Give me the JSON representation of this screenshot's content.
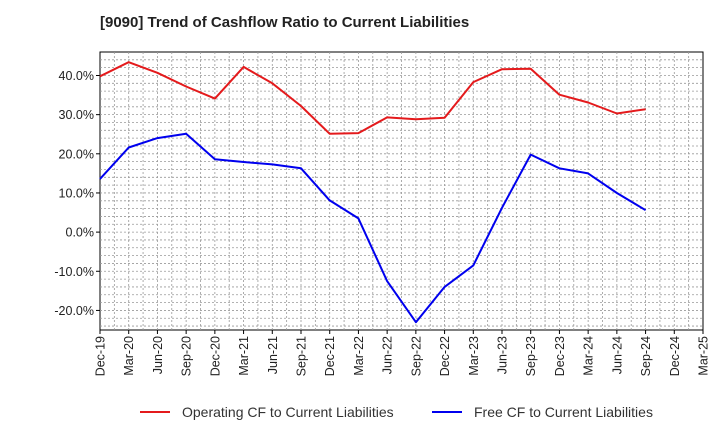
{
  "title": "[9090]  Trend of Cashflow Ratio to Current Liabilities",
  "chart_data": {
    "type": "line",
    "title": "[9090]  Trend of Cashflow Ratio to Current Liabilities",
    "categories": [
      "Dec-19",
      "Mar-20",
      "Jun-20",
      "Sep-20",
      "Dec-20",
      "Mar-21",
      "Jun-21",
      "Sep-21",
      "Dec-21",
      "Mar-22",
      "Jun-22",
      "Sep-22",
      "Dec-22",
      "Mar-23",
      "Jun-23",
      "Sep-23",
      "Dec-23",
      "Mar-24",
      "Jun-24",
      "Sep-24",
      "Dec-24",
      "Mar-25"
    ],
    "y_ticks": [
      "40.0%",
      "30.0%",
      "20.0%",
      "10.0%",
      "0.0%",
      "-10.0%",
      "-20.0%"
    ],
    "ylim": [
      -25,
      46
    ],
    "grid": true,
    "legend_position": "bottom",
    "series": [
      {
        "name": "Operating CF to Current Liabilities",
        "color": "#e41a1c",
        "values": [
          39.8,
          43.4,
          40.7,
          37.2,
          34.1,
          42.2,
          38.0,
          32.2,
          25.1,
          25.3,
          29.3,
          28.8,
          29.2,
          38.3,
          41.6,
          41.7,
          35.1,
          33.1,
          30.3,
          31.4,
          null,
          null
        ]
      },
      {
        "name": "Free CF to Current Liabilities",
        "color": "#0000ee",
        "values": [
          13.6,
          21.6,
          24.0,
          25.1,
          18.6,
          17.9,
          17.3,
          16.3,
          8.1,
          3.5,
          -12.5,
          -23.0,
          -14.0,
          -8.5,
          6.2,
          19.8,
          16.3,
          15.0,
          10.0,
          5.6,
          null,
          null
        ]
      }
    ]
  }
}
